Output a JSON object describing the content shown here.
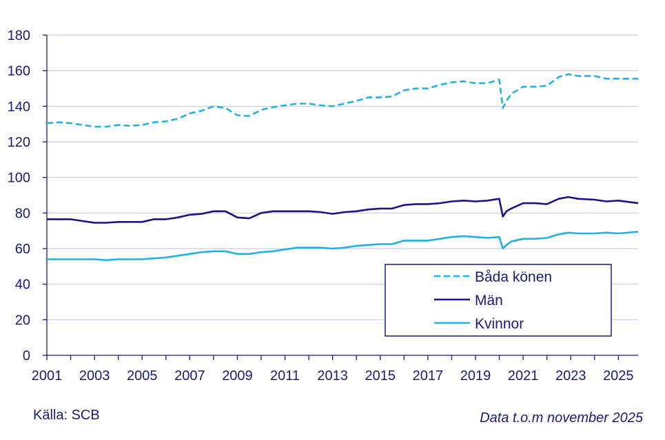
{
  "source": "Källa: SCB",
  "note": "Data t.o.m november 2025",
  "colors": {
    "text": "#1a1a7e",
    "grid": "#c9c9e6",
    "axis": "#1a1a7e"
  },
  "chart_data": {
    "type": "line",
    "title": "",
    "xlabel": "",
    "ylabel": "",
    "xlim": [
      2001,
      2025.83
    ],
    "ylim": [
      0,
      180
    ],
    "y_ticks": [
      0,
      20,
      40,
      60,
      80,
      100,
      120,
      140,
      160,
      180
    ],
    "x_ticks": [
      2001,
      2003,
      2005,
      2007,
      2009,
      2011,
      2013,
      2015,
      2017,
      2019,
      2021,
      2023,
      2025
    ],
    "grid": "horizontal",
    "legend_position": "bottom-right",
    "series": [
      {
        "name": "Båda könen",
        "color": "#1fb1e6",
        "style": "dashed",
        "x": [
          2001,
          2001.5,
          2002,
          2002.5,
          2003,
          2003.5,
          2004,
          2004.5,
          2005,
          2005.5,
          2006,
          2006.5,
          2007,
          2007.5,
          2008,
          2008.5,
          2009,
          2009.5,
          2010,
          2010.5,
          2011,
          2011.5,
          2012,
          2012.5,
          2013,
          2013.5,
          2014,
          2014.5,
          2015,
          2015.5,
          2016,
          2016.5,
          2017,
          2017.5,
          2018,
          2018.5,
          2019,
          2019.5,
          2020.0,
          2020.15,
          2020.3,
          2020.5,
          2021,
          2021.5,
          2022,
          2022.5,
          2022.9,
          2023.3,
          2024,
          2024.5,
          2025,
          2025.83
        ],
        "values": [
          130.5,
          131,
          130.5,
          129.5,
          128.5,
          128.5,
          129.5,
          129,
          129.5,
          131,
          131.5,
          133,
          136,
          137.5,
          140,
          139,
          135,
          134.5,
          138,
          139.5,
          140.5,
          141.5,
          141.5,
          140.5,
          140,
          141.5,
          143,
          145,
          145,
          145.5,
          149,
          150,
          150,
          152,
          153.5,
          154,
          153,
          153,
          155,
          139,
          143,
          147,
          151,
          151,
          151.5,
          156.5,
          158,
          157,
          157,
          155.5,
          155.5,
          155.5
        ]
      },
      {
        "name": "Män",
        "color": "#1e0f8a",
        "style": "solid",
        "x": [
          2001,
          2001.5,
          2002,
          2002.5,
          2003,
          2003.5,
          2004,
          2004.5,
          2005,
          2005.5,
          2006,
          2006.5,
          2007,
          2007.5,
          2008,
          2008.5,
          2009,
          2009.5,
          2010,
          2010.5,
          2011,
          2011.5,
          2012,
          2012.5,
          2013,
          2013.5,
          2014,
          2014.5,
          2015,
          2015.5,
          2016,
          2016.5,
          2017,
          2017.5,
          2018,
          2018.5,
          2019,
          2019.5,
          2020.0,
          2020.15,
          2020.3,
          2020.5,
          2021,
          2021.5,
          2022,
          2022.5,
          2022.9,
          2023.3,
          2024,
          2024.5,
          2025,
          2025.83
        ],
        "values": [
          76.5,
          76.5,
          76.5,
          75.5,
          74.5,
          74.5,
          75,
          75,
          75,
          76.5,
          76.5,
          77.5,
          79,
          79.5,
          81,
          81,
          77.5,
          77,
          80,
          81,
          81,
          81,
          81,
          80.5,
          79.5,
          80.5,
          81,
          82,
          82.5,
          82.5,
          84.5,
          85,
          85,
          85.5,
          86.5,
          87,
          86.5,
          87,
          88,
          78,
          81,
          82.5,
          85.5,
          85.5,
          85,
          88,
          89,
          88,
          87.5,
          86.5,
          87,
          85.5
        ]
      },
      {
        "name": "Kvinnor",
        "color": "#1fb1e6",
        "style": "solid",
        "x": [
          2001,
          2001.5,
          2002,
          2002.5,
          2003,
          2003.5,
          2004,
          2004.5,
          2005,
          2005.5,
          2006,
          2006.5,
          2007,
          2007.5,
          2008,
          2008.5,
          2009,
          2009.5,
          2010,
          2010.5,
          2011,
          2011.5,
          2012,
          2012.5,
          2013,
          2013.5,
          2014,
          2014.5,
          2015,
          2015.5,
          2016,
          2016.5,
          2017,
          2017.5,
          2018,
          2018.5,
          2019,
          2019.5,
          2020.0,
          2020.15,
          2020.3,
          2020.5,
          2021,
          2021.5,
          2022,
          2022.5,
          2022.9,
          2023.3,
          2024,
          2024.5,
          2025,
          2025.83
        ],
        "values": [
          54,
          54,
          54,
          54,
          54,
          53.5,
          54,
          54,
          54,
          54.5,
          55,
          56,
          57,
          58,
          58.5,
          58.5,
          57,
          57,
          58,
          58.5,
          59.5,
          60.5,
          60.5,
          60.5,
          60,
          60.5,
          61.5,
          62,
          62.5,
          62.5,
          64.5,
          64.5,
          64.5,
          65.5,
          66.5,
          67,
          66.5,
          66,
          66.5,
          60,
          62,
          64,
          65.5,
          65.5,
          66,
          68,
          69,
          68.5,
          68.5,
          69,
          68.5,
          69.5
        ]
      }
    ]
  }
}
